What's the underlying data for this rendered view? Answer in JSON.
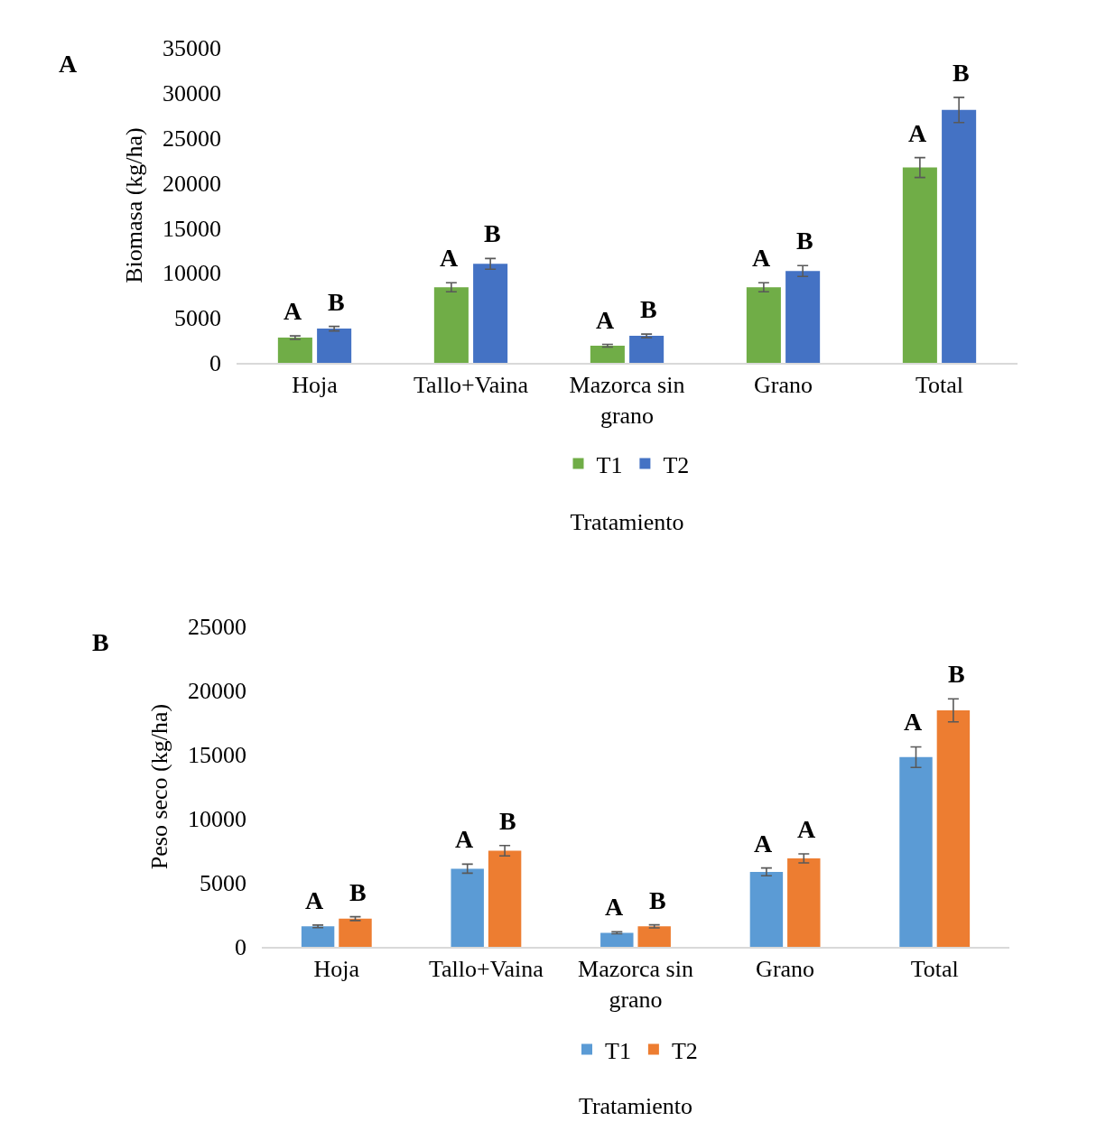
{
  "chart_data": [
    {
      "type": "bar",
      "ylabel": "Biomasa (kg/ha)",
      "xlabel": "Tratamiento",
      "categories": [
        "Hoja",
        "Tallo+Vaina",
        "Mazorca sin grano",
        "Grano",
        "Total"
      ],
      "ylim": [
        0,
        35000
      ],
      "yticks": [
        0,
        5000,
        10000,
        15000,
        20000,
        25000,
        30000,
        35000
      ],
      "grid": false,
      "legend": "bottom",
      "series": [
        {
          "name": "T1",
          "color": "#70ad47",
          "values": [
            2800,
            8400,
            1900,
            8400,
            21700
          ],
          "errors": [
            200,
            500,
            150,
            500,
            1100
          ]
        },
        {
          "name": "T2",
          "color": "#4472c4",
          "values": [
            3800,
            11000,
            3000,
            10200,
            28100
          ],
          "errors": [
            250,
            600,
            200,
            600,
            1400
          ]
        }
      ],
      "annotations": [
        "A",
        {
          "text": "A",
          "x": "Hoja",
          "y": 2800
        },
        {
          "text": "B",
          "x": "Hoja",
          "y": 3800
        },
        {
          "text": "A",
          "x": "Tallo+Vaina",
          "y": 8400
        },
        {
          "text": "B",
          "x": "Tallo+Vaina",
          "y": 11000
        },
        {
          "text": "A",
          "x": "Mazorca sin grano",
          "y": 1900
        },
        {
          "text": "B",
          "x": "Mazorca sin grano",
          "y": 3000
        },
        {
          "text": "A",
          "x": "Grano",
          "y": 8400
        },
        {
          "text": "B",
          "x": "Grano",
          "y": 10200
        },
        {
          "text": "A",
          "x": "Total",
          "y": 21700
        },
        {
          "text": "B",
          "x": "Total",
          "y": 28100
        }
      ]
    },
    {
      "type": "bar",
      "ylabel": "Peso seco (kg/ha)",
      "xlabel": "Tratamiento",
      "categories": [
        "Hoja",
        "Tallo+Vaina",
        "Mazorca sin grano",
        "Grano",
        "Total"
      ],
      "ylim": [
        0,
        25000
      ],
      "yticks": [
        0,
        5000,
        10000,
        15000,
        20000,
        25000
      ],
      "grid": false,
      "legend": "bottom",
      "series": [
        {
          "name": "T1",
          "color": "#5b9bd5",
          "values": [
            1600,
            6100,
            1100,
            5850,
            14800
          ],
          "errors": [
            100,
            350,
            80,
            300,
            800
          ]
        },
        {
          "name": "T2",
          "color": "#ed7d31",
          "values": [
            2200,
            7500,
            1600,
            6900,
            18450
          ],
          "errors": [
            150,
            400,
            120,
            350,
            900
          ]
        }
      ],
      "annotations": [
        "B",
        {
          "text": "A",
          "x": "Hoja",
          "y": 1600
        },
        {
          "text": "B",
          "x": "Hoja",
          "y": 2200
        },
        {
          "text": "A",
          "x": "Tallo+Vaina",
          "y": 6100
        },
        {
          "text": "B",
          "x": "Tallo+Vaina",
          "y": 7500
        },
        {
          "text": "A",
          "x": "Mazorca sin grano",
          "y": 1100
        },
        {
          "text": "B",
          "x": "Mazorca sin grano",
          "y": 1600
        },
        {
          "text": "A",
          "x": "Grano",
          "y": 5850
        },
        {
          "text": "A",
          "x": "Grano",
          "y": 6900
        },
        {
          "text": "A",
          "x": "Total",
          "y": 14800
        },
        {
          "text": "B",
          "x": "Total",
          "y": 18450
        }
      ]
    }
  ]
}
